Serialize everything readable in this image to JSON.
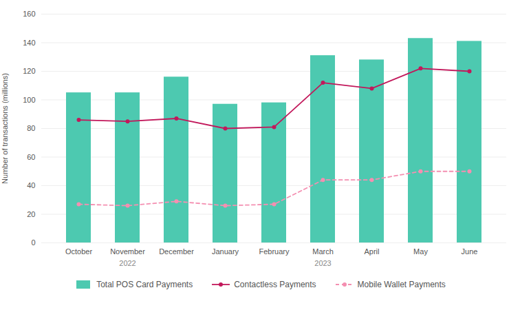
{
  "chart_data": {
    "type": "bar",
    "categories": [
      "October",
      "November",
      "December",
      "January",
      "February",
      "March",
      "April",
      "May",
      "June"
    ],
    "series": [
      {
        "name": "Total POS Card Payments",
        "type": "bar",
        "color": "#4DC9B0",
        "values": [
          105,
          105,
          116,
          97,
          98,
          131,
          128,
          143,
          141
        ]
      },
      {
        "name": "Contactless Payments",
        "type": "line",
        "color": "#C2185B",
        "marker": "circle",
        "line_style": "solid",
        "values": [
          86,
          85,
          87,
          80,
          81,
          112,
          108,
          122,
          120
        ]
      },
      {
        "name": "Mobile Wallet Payments",
        "type": "line",
        "color": "#F48FB1",
        "marker": "circle",
        "line_style": "dashed",
        "values": [
          27,
          26,
          29,
          26,
          27,
          44,
          44,
          50,
          50
        ]
      }
    ],
    "ylabel": "Number of transactions (millions)",
    "ylim": [
      0,
      160
    ],
    "yticks": [
      0,
      20,
      40,
      60,
      80,
      100,
      120,
      140,
      160
    ],
    "grid": true,
    "legend": "bottom",
    "annotations": [
      {
        "text": "2022",
        "x": "November"
      },
      {
        "text": "2023",
        "x": "March"
      }
    ]
  }
}
